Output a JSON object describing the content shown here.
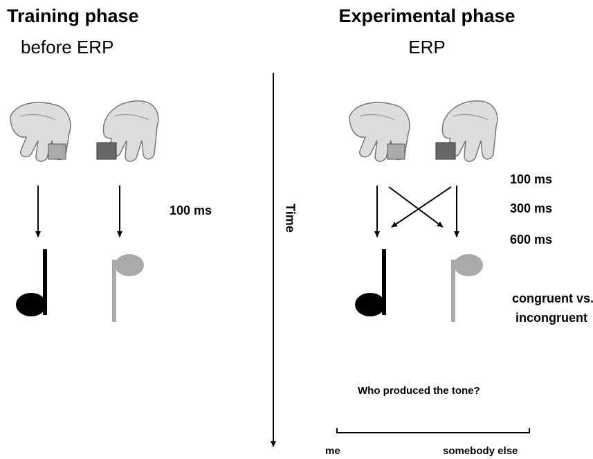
{
  "left_panel": {
    "title": "Training phase",
    "subtitle": "before ERP",
    "delay": "100 ms"
  },
  "right_panel": {
    "title": "Experimental phase",
    "subtitle": "ERP",
    "delays": [
      "100 ms",
      "300 ms",
      "600 ms"
    ],
    "condition": [
      "congruent vs.",
      "incongruent"
    ],
    "question": "Who produced the tone?",
    "scale": {
      "left": "me",
      "right": "somebody else"
    }
  },
  "time_label": "Time"
}
